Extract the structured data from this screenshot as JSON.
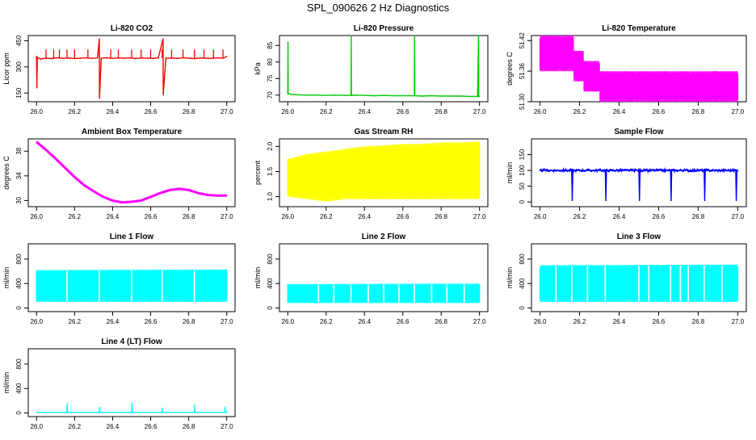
{
  "figure": {
    "title": "SPL_090626  2 Hz Diagnostics"
  },
  "chart_data": [
    {
      "type": "line",
      "title": "Li-820 CO2",
      "xlabel": "",
      "ylabel": "Licor ppm",
      "xlim": [
        26.0,
        27.0
      ],
      "ylim": [
        100,
        480
      ],
      "xticks": [
        "26.0",
        "26.2",
        "26.4",
        "26.6",
        "26.8",
        "27.0"
      ],
      "yticks": [
        150,
        300,
        450
      ],
      "yticks_labels": [
        "150",
        "300",
        "450"
      ],
      "color": "#ff0000",
      "series": [
        {
          "x": [
            26.0,
            26.002,
            26.004,
            26.02,
            26.05,
            26.08,
            26.11,
            26.14,
            26.17,
            26.2,
            26.23,
            26.26,
            26.29,
            26.32,
            26.33,
            26.331,
            26.34,
            26.37,
            26.4,
            26.43,
            26.46,
            26.49,
            26.52,
            26.55,
            26.58,
            26.61,
            26.64,
            26.665,
            26.666,
            26.68,
            26.71,
            26.74,
            26.77,
            26.8,
            26.83,
            26.86,
            26.89,
            26.92,
            26.95,
            26.98,
            27.0
          ],
          "y": [
            360,
            180,
            355,
            345,
            350,
            348,
            352,
            349,
            351,
            348,
            350,
            352,
            349,
            351,
            460,
            120,
            350,
            352,
            349,
            351,
            350,
            352,
            348,
            351,
            350,
            349,
            352,
            460,
            140,
            350,
            351,
            349,
            352,
            350,
            348,
            351,
            350,
            349,
            352,
            350,
            360
          ]
        }
      ],
      "spikes": [
        26.05,
        26.09,
        26.12,
        26.16,
        26.2,
        26.27,
        26.33,
        26.39,
        26.43,
        26.5,
        26.55,
        26.6,
        26.66,
        26.71,
        26.77,
        26.83,
        26.88,
        26.93,
        26.98
      ],
      "spike_top": 400
    },
    {
      "type": "line",
      "title": "Li-820 Pressure",
      "xlabel": "",
      "ylabel": "kPa",
      "xlim": [
        26.0,
        27.0
      ],
      "ylim": [
        68,
        88
      ],
      "xticks": [
        "26.0",
        "26.2",
        "26.4",
        "26.6",
        "26.8",
        "27.0"
      ],
      "yticks": [
        70,
        75,
        80,
        85
      ],
      "yticks_labels": [
        "70",
        "75",
        "80",
        "85"
      ],
      "color": "#00cc00",
      "series": [
        {
          "x": [
            26.0,
            26.001,
            26.002,
            26.02,
            26.05,
            26.1,
            26.15,
            26.2,
            26.25,
            26.3,
            26.33,
            26.331,
            26.332,
            26.35,
            26.4,
            26.45,
            26.5,
            26.55,
            26.6,
            26.66,
            26.661,
            26.662,
            26.7,
            26.75,
            26.8,
            26.85,
            26.9,
            26.95,
            26.99,
            26.995,
            26.996,
            27.0
          ],
          "y": [
            70.5,
            86,
            70.4,
            70.2,
            70.1,
            70.0,
            70.0,
            69.9,
            70.0,
            69.9,
            69.9,
            88,
            69.9,
            70.0,
            69.9,
            69.8,
            69.9,
            69.8,
            69.8,
            69.8,
            88,
            69.8,
            69.7,
            69.8,
            69.7,
            69.7,
            69.7,
            69.6,
            69.6,
            88,
            69.6,
            69.6
          ]
        }
      ]
    },
    {
      "type": "area",
      "title": "Li-820 Temperature",
      "xlabel": "",
      "ylabel": "degrees C",
      "xlim": [
        26.0,
        27.0
      ],
      "ylim": [
        51.3,
        51.43
      ],
      "xticks": [
        "26.0",
        "26.2",
        "26.4",
        "26.6",
        "26.8",
        "27.0"
      ],
      "yticks": [
        51.3,
        51.36,
        51.42
      ],
      "yticks_labels": [
        "51.30",
        "51.36",
        "51.42"
      ],
      "color": "#ff00ff",
      "series": [
        {
          "x": [
            26.0,
            26.17,
            26.17,
            26.22,
            26.22,
            26.3,
            26.3,
            27.0
          ],
          "y_high": [
            51.43,
            51.43,
            51.4,
            51.4,
            51.38,
            51.38,
            51.36,
            51.36
          ],
          "y_low": [
            51.36,
            51.36,
            51.34,
            51.34,
            51.32,
            51.32,
            51.3,
            51.3
          ]
        }
      ]
    },
    {
      "type": "line",
      "title": "Ambient Box Temperature",
      "xlabel": "",
      "ylabel": "degrees C",
      "xlim": [
        26.0,
        27.0
      ],
      "ylim": [
        29,
        40
      ],
      "xticks": [
        "26.0",
        "26.2",
        "26.4",
        "26.6",
        "26.8",
        "27.0"
      ],
      "yticks": [
        30,
        34,
        38
      ],
      "yticks_labels": [
        "30",
        "34",
        "38"
      ],
      "color": "#ff00ff",
      "series": [
        {
          "x": [
            26.0,
            26.05,
            26.1,
            26.15,
            26.2,
            26.25,
            26.3,
            26.35,
            26.4,
            26.45,
            26.5,
            26.55,
            26.6,
            26.65,
            26.7,
            26.75,
            26.8,
            26.85,
            26.9,
            26.95,
            27.0
          ],
          "y": [
            39.5,
            38.2,
            36.8,
            35.3,
            33.8,
            32.5,
            31.5,
            30.6,
            30.0,
            29.7,
            29.8,
            30.0,
            30.6,
            31.2,
            31.7,
            31.9,
            31.7,
            31.2,
            30.9,
            30.8,
            30.8
          ]
        }
      ]
    },
    {
      "type": "area",
      "title": "Gas Stream RH",
      "xlabel": "",
      "ylabel": "percent",
      "xlim": [
        26.0,
        27.0
      ],
      "ylim": [
        0.8,
        2.15
      ],
      "xticks": [
        "26.0",
        "26.2",
        "26.4",
        "26.6",
        "26.8",
        "27.0"
      ],
      "yticks": [
        1.0,
        1.5,
        2.0
      ],
      "yticks_labels": [
        "1.0",
        "1.5",
        "2.0"
      ],
      "color": "#ffff00",
      "series": [
        {
          "x": [
            26.0,
            26.1,
            26.2,
            26.3,
            26.4,
            26.5,
            26.6,
            26.7,
            26.8,
            26.9,
            27.0
          ],
          "y_high": [
            1.75,
            1.85,
            1.9,
            1.95,
            2.0,
            2.02,
            2.05,
            2.05,
            2.08,
            2.08,
            2.1
          ],
          "y_low": [
            1.0,
            0.95,
            0.9,
            0.95,
            0.95,
            0.95,
            0.95,
            0.95,
            0.95,
            0.95,
            0.95
          ]
        }
      ]
    },
    {
      "type": "line",
      "title": "Sample Flow",
      "xlabel": "",
      "ylabel": "ml/min",
      "xlim": [
        26.0,
        27.0
      ],
      "ylim": [
        -15,
        200
      ],
      "xticks": [
        "26.0",
        "26.2",
        "26.4",
        "26.6",
        "26.8",
        "27.0"
      ],
      "yticks": [
        0,
        50,
        100,
        150
      ],
      "yticks_labels": [
        "0",
        "50",
        "100",
        "150"
      ],
      "color": "#0000ff",
      "series": [
        {
          "x": [
            26.0,
            26.16,
            26.163,
            26.166,
            26.17,
            26.33,
            26.333,
            26.336,
            26.34,
            26.5,
            26.503,
            26.506,
            26.51,
            26.66,
            26.663,
            26.666,
            26.67,
            26.83,
            26.833,
            26.836,
            26.84,
            26.99,
            26.993,
            26.996,
            27.0
          ],
          "y": [
            100,
            100,
            5,
            100,
            100,
            100,
            5,
            100,
            100,
            100,
            5,
            100,
            100,
            100,
            5,
            100,
            100,
            100,
            5,
            100,
            100,
            100,
            5,
            100,
            100
          ]
        }
      ],
      "band": [
        96,
        104
      ]
    },
    {
      "type": "area",
      "title": "Line 1 Flow",
      "xlabel": "",
      "ylabel": "ml/min",
      "xlim": [
        26.0,
        27.0
      ],
      "ylim": [
        -60,
        1050
      ],
      "xticks": [
        "26.0",
        "26.2",
        "26.4",
        "26.6",
        "26.8",
        "27.0"
      ],
      "yticks": [
        0,
        400,
        800
      ],
      "yticks_labels": [
        "0",
        "400",
        "800"
      ],
      "color": "#00ffff",
      "series": [
        {
          "x": [
            26.0,
            27.0
          ],
          "y_high": [
            620,
            630
          ],
          "y_low": [
            100,
            100
          ]
        }
      ],
      "gaps": [
        26.16,
        26.33,
        26.5,
        26.66,
        26.83
      ]
    },
    {
      "type": "area",
      "title": "Line 2 Flow",
      "xlabel": "",
      "ylabel": "ml/min",
      "xlim": [
        26.0,
        27.0
      ],
      "ylim": [
        -60,
        1050
      ],
      "xticks": [
        "26.0",
        "26.2",
        "26.4",
        "26.6",
        "26.8",
        "27.0"
      ],
      "yticks": [
        0,
        400,
        800
      ],
      "yticks_labels": [
        "0",
        "400",
        "800"
      ],
      "color": "#00ffff",
      "series": [
        {
          "x": [
            26.0,
            27.0
          ],
          "y_high": [
            390,
            400
          ],
          "y_low": [
            80,
            80
          ]
        }
      ],
      "gaps": [
        26.16,
        26.24,
        26.33,
        26.42,
        26.5,
        26.58,
        26.66,
        26.75,
        26.83,
        26.92
      ]
    },
    {
      "type": "area",
      "title": "Line 3 Flow",
      "xlabel": "",
      "ylabel": "ml/min",
      "xlim": [
        26.0,
        27.0
      ],
      "ylim": [
        -60,
        1050
      ],
      "xticks": [
        "26.0",
        "26.2",
        "26.4",
        "26.6",
        "26.8",
        "27.0"
      ],
      "yticks": [
        0,
        400,
        800
      ],
      "yticks_labels": [
        "0",
        "400",
        "800"
      ],
      "color": "#00ffff",
      "series": [
        {
          "x": [
            26.0,
            27.0
          ],
          "y_high": [
            700,
            710
          ],
          "y_low": [
            100,
            100
          ]
        }
      ],
      "gaps": [
        26.08,
        26.16,
        26.24,
        26.33,
        26.5,
        26.55,
        26.66,
        26.71,
        26.75,
        26.83,
        26.92
      ]
    },
    {
      "type": "line",
      "title": "Line 4 (LT) Flow",
      "xlabel": "",
      "ylabel": "ml/min",
      "xlim": [
        26.0,
        27.0
      ],
      "ylim": [
        -60,
        1050
      ],
      "xticks": [
        "26.0",
        "26.2",
        "26.4",
        "26.6",
        "26.8",
        "27.0"
      ],
      "yticks": [
        0,
        400,
        800
      ],
      "yticks_labels": [
        "0",
        "400",
        "800"
      ],
      "color": "#00ffff",
      "series": [
        {
          "x": [
            26.0,
            26.16,
            26.161,
            26.163,
            26.33,
            26.331,
            26.333,
            26.5,
            26.501,
            26.503,
            26.66,
            26.661,
            26.663,
            26.83,
            26.831,
            26.833,
            26.99,
            26.991,
            26.993,
            27.0
          ],
          "y": [
            10,
            10,
            150,
            10,
            10,
            90,
            10,
            10,
            160,
            10,
            10,
            80,
            10,
            10,
            130,
            10,
            10,
            90,
            10,
            10
          ]
        }
      ]
    }
  ]
}
